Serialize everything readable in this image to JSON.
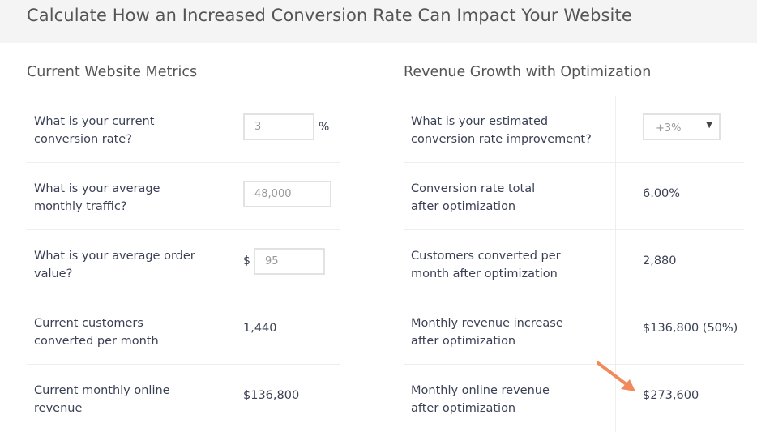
{
  "title": "Calculate How an Increased Conversion Rate Can Impact Your Website",
  "left": {
    "heading": "Current Website Metrics",
    "rows": [
      {
        "label": "What is your current conversion rate?",
        "value": "3",
        "unit": "%"
      },
      {
        "label": "What is your average monthly traffic?",
        "value": "48,000"
      },
      {
        "label": "What is your average order value?",
        "value": "95",
        "prefix": "$"
      },
      {
        "label": "Current customers converted per month",
        "value": "1,440"
      },
      {
        "label": "Current monthly online revenue",
        "value": "$136,800"
      }
    ]
  },
  "right": {
    "heading": "Revenue Growth with Optimization",
    "rows": [
      {
        "label": "What is your estimated conversion rate improvement?",
        "value": "+3%"
      },
      {
        "label": "Conversion rate total after optimization",
        "value": "6.00%"
      },
      {
        "label": "Customers converted per month after optimization",
        "value": "2,880"
      },
      {
        "label": "Monthly revenue increase after optimization",
        "value": "$136,800 (50%)"
      },
      {
        "label": "Monthly online revenue after optimization",
        "value": "$273,600"
      }
    ]
  },
  "colors": {
    "arrow": "#f08a5d",
    "text": "#3b4155",
    "header_bg": "#f4f4f4"
  }
}
